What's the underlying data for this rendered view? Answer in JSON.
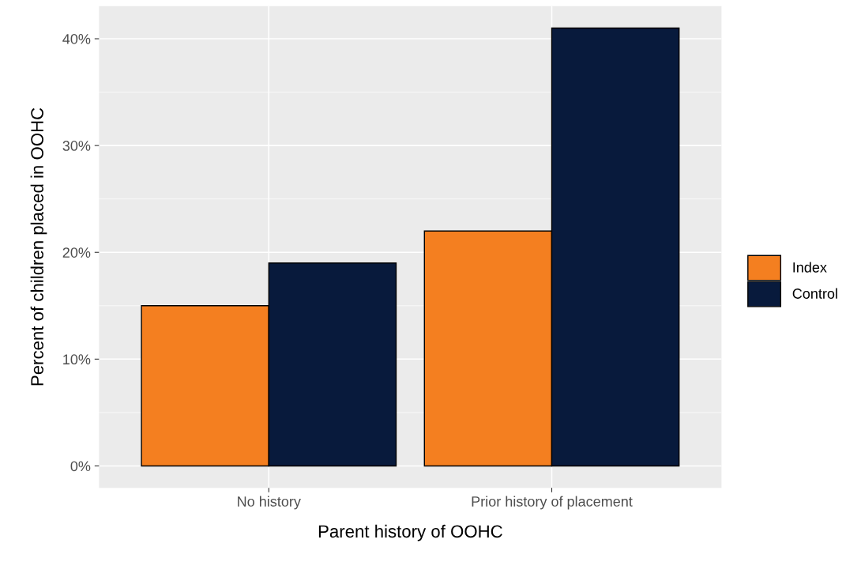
{
  "chart_data": {
    "type": "bar",
    "xlabel": "Parent history of OOHC",
    "ylabel": "Percent of children placed in OOHC",
    "categories": [
      "No history",
      "Prior history of placement"
    ],
    "series": [
      {
        "name": "Index",
        "color": "#f47f20",
        "values": [
          15,
          22
        ]
      },
      {
        "name": "Control",
        "color": "#081a3c",
        "values": [
          19,
          41
        ]
      }
    ],
    "ylim": [
      -2.05,
      43.05
    ],
    "yticks": [
      {
        "value": 0,
        "label": "0%"
      },
      {
        "value": 10,
        "label": "10%"
      },
      {
        "value": 20,
        "label": "20%"
      },
      {
        "value": 30,
        "label": "30%"
      },
      {
        "value": 40,
        "label": "40%"
      }
    ],
    "grid": true,
    "legend": "right"
  }
}
